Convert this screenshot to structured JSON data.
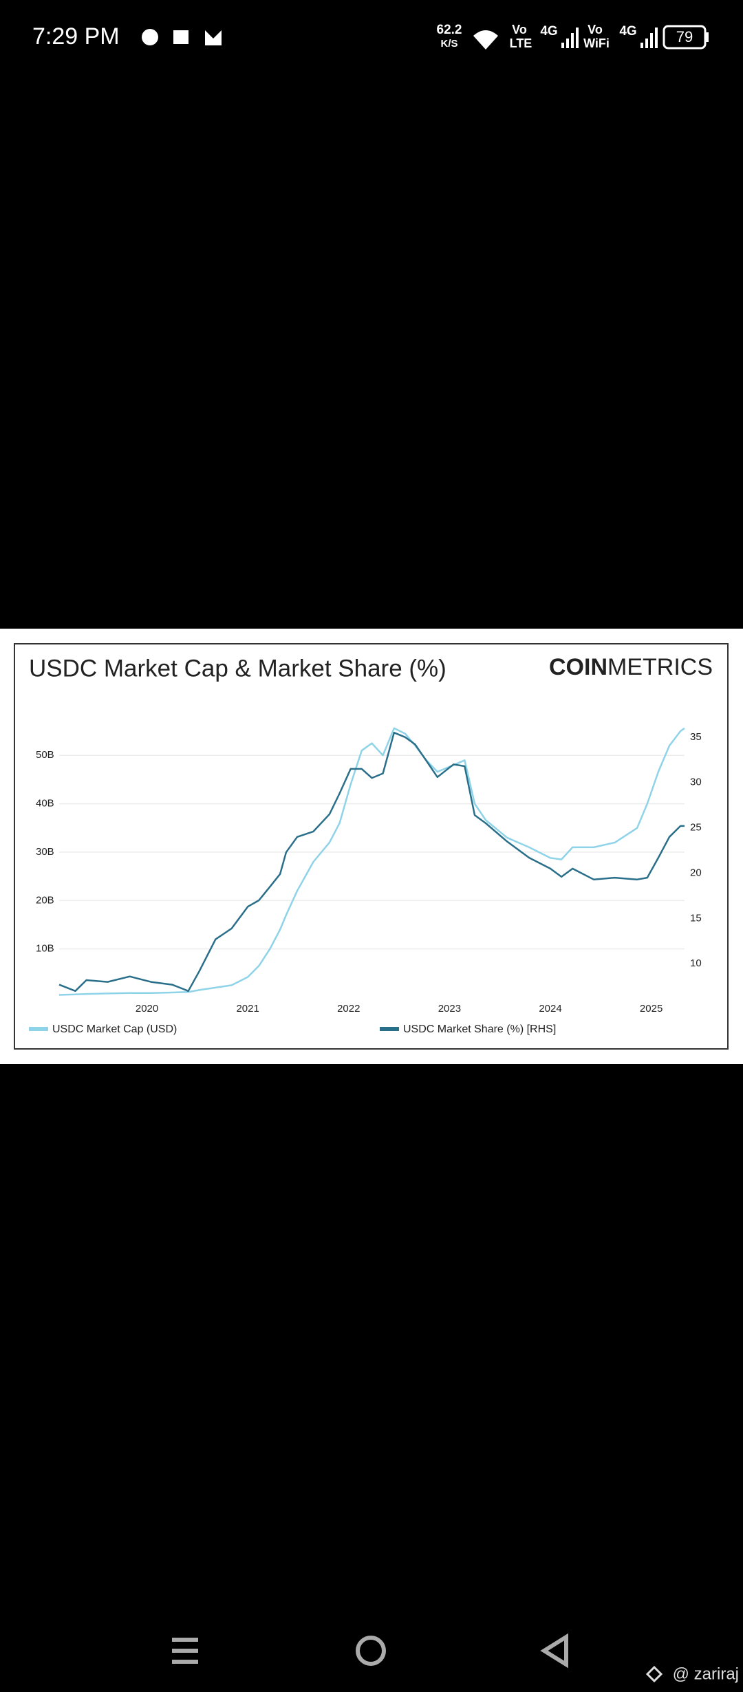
{
  "status_bar": {
    "time": "7:29 PM",
    "speed": "62.2",
    "speed_unit": "K/S",
    "vo1": "Vo",
    "lte": "LTE",
    "g1": "4G",
    "vo2": "Vo",
    "wifi": "WiFi",
    "g2": "4G",
    "battery": "79"
  },
  "chart_data": {
    "type": "line",
    "title": "USDC Market Cap & Market Share (%)",
    "logo_bold": "COIN",
    "logo_light": "METRICS",
    "x": [
      2019.13,
      2019.29,
      2019.4,
      2019.61,
      2019.83,
      2020.04,
      2020.25,
      2020.41,
      2020.52,
      2020.68,
      2020.84,
      2021.0,
      2021.11,
      2021.22,
      2021.32,
      2021.38,
      2021.49,
      2021.65,
      2021.81,
      2021.91,
      2022.02,
      2022.13,
      2022.23,
      2022.34,
      2022.45,
      2022.56,
      2022.66,
      2022.77,
      2022.88,
      2023.04,
      2023.15,
      2023.25,
      2023.36,
      2023.57,
      2023.79,
      2024.0,
      2024.11,
      2024.22,
      2024.43,
      2024.64,
      2024.86,
      2024.96,
      2025.07,
      2025.18,
      2025.29,
      2025.33
    ],
    "series": [
      {
        "name": "USDC Market Cap (USD)",
        "color": "#8fd3e8",
        "values": [
          0.5,
          0.6,
          0.7,
          0.8,
          0.9,
          0.9,
          1.0,
          1.1,
          1.5,
          2.0,
          2.5,
          4.2,
          6.5,
          10,
          14,
          17,
          22,
          28,
          32,
          36,
          44,
          51,
          52.5,
          50,
          55.6,
          54.5,
          52,
          49,
          46.6,
          48,
          49,
          40,
          36.6,
          33,
          31,
          28.8,
          28.5,
          31,
          31,
          32,
          35,
          40,
          46.6,
          52,
          55,
          55.6
        ]
      },
      {
        "name": "USDC Market Share (%) [RHS]",
        "color": "#2a6f8a",
        "axis": "y2",
        "values": [
          7.7,
          7,
          8.2,
          8,
          8.6,
          8,
          7.7,
          7,
          9.2,
          12.7,
          13.9,
          16.3,
          17,
          18.5,
          19.9,
          22.3,
          24,
          24.6,
          26.5,
          28.8,
          31.5,
          31.5,
          30.5,
          31,
          35.5,
          35,
          34.2,
          32.4,
          30.6,
          32,
          31.8,
          26.4,
          25.5,
          23.5,
          21.7,
          20.5,
          19.6,
          20.5,
          19.3,
          19.5,
          19.3,
          19.5,
          21.7,
          24,
          25.2,
          25.2
        ]
      }
    ],
    "xlim": [
      2019.13,
      2025.33
    ],
    "xticks": [
      2020,
      2021,
      2022,
      2023,
      2024,
      2025
    ],
    "ylim": [
      0,
      56
    ],
    "yticks": [
      {
        "value": 10,
        "label": "10B"
      },
      {
        "value": 20,
        "label": "20B"
      },
      {
        "value": 30,
        "label": "30B"
      },
      {
        "value": 40,
        "label": "40B"
      },
      {
        "value": 50,
        "label": "50B"
      }
    ],
    "y2lim": [
      6.3,
      36.2
    ],
    "y2ticks": [
      10,
      15,
      20,
      25,
      30,
      35
    ],
    "grid": true
  },
  "watermark": "@ zariraj"
}
